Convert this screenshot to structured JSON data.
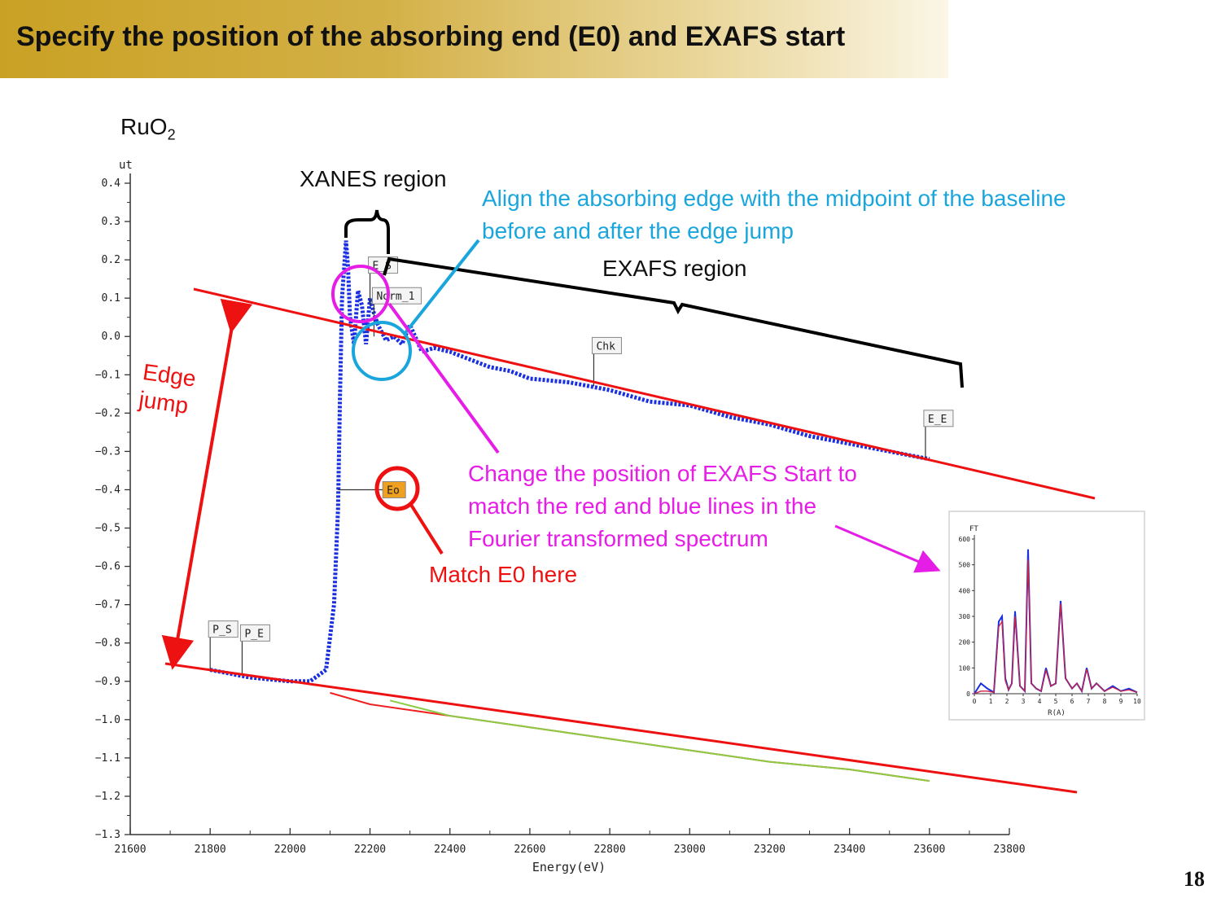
{
  "slide": {
    "title": "Specify the position of the absorbing end (E0) and EXAFS start",
    "sample_label": "RuO",
    "sample_subscript": "2",
    "page_number": "18"
  },
  "annotations": {
    "xanes_region": "XANES region",
    "exafs_region": "EXAFS region",
    "align_note": "Align the absorbing edge with the midpoint of the baseline\nbefore and after the edge jump",
    "edge_jump": "Edge\njump",
    "exafs_start_note": "Change the position of EXAFS Start to\nmatch the red and blue lines in the\nFourier transformed spectrum",
    "match_e0": "Match E0 here",
    "colors": {
      "red": "#ee1111",
      "blue": "#1aa6dc",
      "magenta": "#e61de6",
      "black": "#000000"
    }
  },
  "chart_data": [
    {
      "type": "line",
      "xlabel": "Energy(eV)",
      "ylabel": "ut",
      "xlim": [
        21600,
        23800
      ],
      "ylim": [
        -1.3,
        0.4
      ],
      "xticks": [
        "21600",
        "21800",
        "22000",
        "22200",
        "22400",
        "22600",
        "22800",
        "23000",
        "23200",
        "23400",
        "23600",
        "23800"
      ],
      "yticks": [
        "0.4",
        "0.3",
        "0.2",
        "0.1",
        "0.0",
        "-0.1",
        "-0.2",
        "-0.3",
        "-0.4",
        "-0.5",
        "-0.6",
        "-0.7",
        "-0.8",
        "-0.9",
        "-1.0",
        "-1.1",
        "-1.2",
        "-1.3"
      ],
      "series": [
        {
          "color": "#1a2fe0",
          "x": [
            21800,
            21900,
            22000,
            22050,
            22090,
            22110,
            22120,
            22125,
            22130,
            22140,
            22145,
            22150,
            22160,
            22170,
            22180,
            22190,
            22200,
            22210,
            22220,
            22240,
            22260,
            22280,
            22300,
            22330,
            22360,
            22400,
            22450,
            22500,
            22550,
            22600,
            22700,
            22800,
            22900,
            23000,
            23100,
            23200,
            23300,
            23400,
            23500,
            23600
          ],
          "y": [
            -0.87,
            -0.89,
            -0.9,
            -0.9,
            -0.87,
            -0.7,
            -0.45,
            -0.15,
            0.1,
            0.25,
            0.18,
            0.05,
            -0.02,
            0.12,
            0.08,
            -0.02,
            0.1,
            0.06,
            0.03,
            -0.01,
            0.0,
            -0.02,
            0.03,
            -0.04,
            -0.03,
            -0.04,
            -0.06,
            -0.08,
            -0.09,
            -0.11,
            -0.12,
            -0.14,
            -0.17,
            -0.18,
            -0.21,
            -0.23,
            -0.26,
            -0.28,
            -0.3,
            -0.32
          ]
        },
        {
          "color": "#ee2222",
          "x": [
            22100,
            22200,
            22400,
            22600,
            22800,
            23000,
            23200,
            23400,
            23600
          ],
          "y": [
            -0.93,
            -0.96,
            -0.99,
            -1.02,
            -1.05,
            -1.08,
            -1.11,
            -1.13,
            -1.16
          ]
        },
        {
          "color": "#8ccc44",
          "x": [
            22250,
            22400,
            22600,
            22800,
            23000,
            23200,
            23400,
            23600
          ],
          "y": [
            -0.95,
            -0.99,
            -1.02,
            -1.05,
            -1.08,
            -1.11,
            -1.13,
            -1.16
          ]
        }
      ],
      "markers": [
        {
          "label": "P_S",
          "x": 21800,
          "y": -0.87
        },
        {
          "label": "P_E",
          "x": 21880,
          "y": -0.88
        },
        {
          "label": "E_S",
          "x": 22200,
          "y": 0.08
        },
        {
          "label": "Norm_1",
          "x": 22210,
          "y": 0.0
        },
        {
          "label": "Eo",
          "x": 22130,
          "y": -0.4
        },
        {
          "label": "Chk",
          "x": 22760,
          "y": -0.13
        },
        {
          "label": "E_E",
          "x": 23590,
          "y": -0.32
        }
      ]
    },
    {
      "type": "line",
      "ylabel": "FT",
      "xlabel": "R(A)",
      "xlim": [
        0,
        10
      ],
      "ylim": [
        0,
        600
      ],
      "xticks": [
        "0",
        "1",
        "2",
        "3",
        "4",
        "5",
        "6",
        "7",
        "8",
        "9",
        "10"
      ],
      "yticks": [
        "0",
        "100",
        "200",
        "300",
        "400",
        "500",
        "600"
      ],
      "series": [
        {
          "color": "#1a2fe0",
          "x": [
            0,
            0.4,
            0.8,
            1.2,
            1.5,
            1.7,
            1.9,
            2.1,
            2.3,
            2.5,
            2.8,
            3.1,
            3.3,
            3.5,
            3.8,
            4.1,
            4.4,
            4.7,
            5.0,
            5.3,
            5.6,
            6.0,
            6.3,
            6.6,
            6.9,
            7.2,
            7.5,
            8.0,
            8.5,
            9.0,
            9.5,
            10
          ],
          "y": [
            0,
            40,
            20,
            5,
            280,
            300,
            60,
            15,
            40,
            320,
            30,
            10,
            560,
            40,
            20,
            10,
            100,
            30,
            40,
            360,
            60,
            20,
            40,
            10,
            100,
            20,
            40,
            10,
            30,
            10,
            20,
            5
          ]
        },
        {
          "color": "#cc2244",
          "x": [
            0,
            0.4,
            0.8,
            1.2,
            1.5,
            1.7,
            1.9,
            2.1,
            2.3,
            2.5,
            2.8,
            3.1,
            3.3,
            3.5,
            3.8,
            4.1,
            4.4,
            4.7,
            5.0,
            5.3,
            5.6,
            6.0,
            6.3,
            6.6,
            6.9,
            7.2,
            7.5,
            8.0,
            8.5,
            9.0,
            9.5,
            10
          ],
          "y": [
            0,
            10,
            10,
            5,
            260,
            280,
            50,
            15,
            40,
            300,
            30,
            10,
            520,
            40,
            20,
            10,
            90,
            30,
            40,
            350,
            60,
            20,
            40,
            10,
            95,
            20,
            40,
            10,
            25,
            10,
            15,
            5
          ]
        }
      ]
    }
  ]
}
